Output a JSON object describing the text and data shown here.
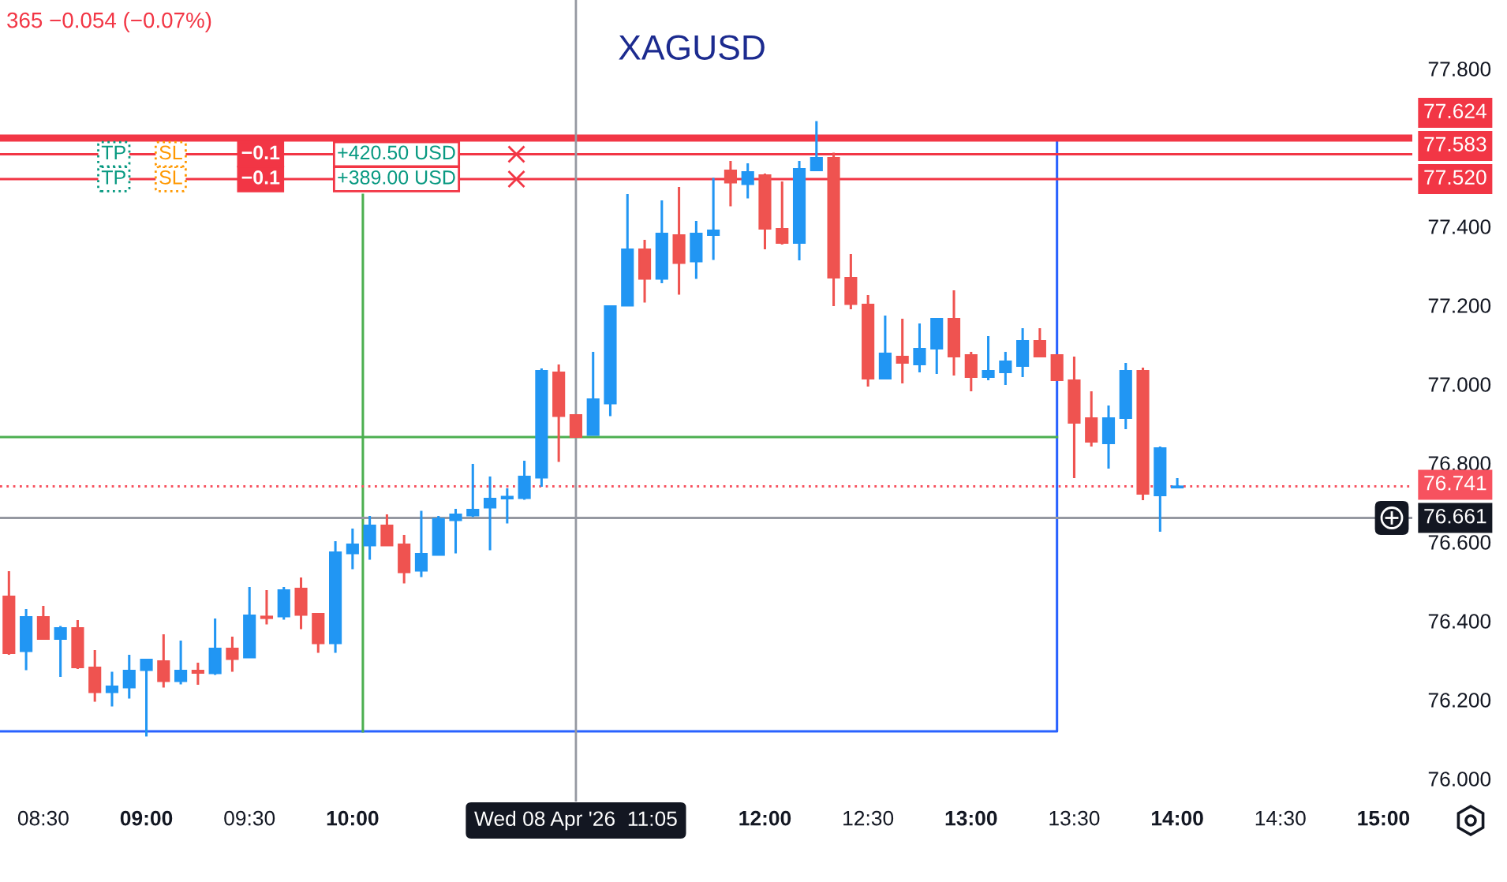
{
  "chart_data": {
    "type": "candlestick",
    "title": "XAGUSD",
    "x": [
      8.3333,
      8.4167,
      8.5,
      8.5833,
      8.6667,
      8.75,
      8.8333,
      8.9167,
      9,
      9.0833,
      9.1667,
      9.25,
      9.3333,
      9.4167,
      9.5,
      9.5833,
      9.6667,
      9.75,
      9.8333,
      9.9167,
      10,
      10.0833,
      10.1667,
      10.25,
      10.3333,
      10.4167,
      10.5,
      10.5833,
      10.6667,
      10.75,
      10.8333,
      10.9167,
      11,
      11.0833,
      11.1667,
      11.25,
      11.3333,
      11.4167,
      11.5,
      11.5833,
      11.6667,
      11.75,
      11.8333,
      11.9167,
      12,
      12.0833,
      12.1667,
      12.25,
      12.3333,
      12.4167,
      12.5,
      12.5833,
      12.6667,
      12.75,
      12.8333,
      12.9167,
      13,
      13.0833,
      13.1667,
      13.25,
      13.3333,
      13.4167,
      13.5,
      13.5833,
      13.6667,
      13.75,
      13.8333,
      13.9167,
      14
    ],
    "ohlc": [
      [
        76.462,
        76.526,
        76.314,
        76.318
      ],
      [
        76.323,
        76.43,
        76.275,
        76.41
      ],
      [
        76.41,
        76.438,
        76.352,
        76.354
      ],
      [
        76.354,
        76.387,
        76.258,
        76.382
      ],
      [
        76.382,
        76.402,
        76.278,
        76.282
      ],
      [
        76.282,
        76.326,
        76.195,
        76.219
      ],
      [
        76.219,
        76.271,
        76.183,
        76.234
      ],
      [
        76.231,
        76.314,
        76.203,
        76.274
      ],
      [
        76.275,
        76.302,
        76.107,
        76.302
      ],
      [
        76.298,
        76.366,
        76.231,
        76.247
      ],
      [
        76.247,
        76.35,
        76.239,
        76.274
      ],
      [
        76.274,
        76.294,
        76.238,
        76.268
      ],
      [
        76.267,
        76.406,
        76.263,
        76.33
      ],
      [
        76.33,
        76.36,
        76.271,
        76.303
      ],
      [
        76.307,
        76.486,
        76.307,
        76.414
      ],
      [
        76.411,
        76.478,
        76.391,
        76.407
      ],
      [
        76.411,
        76.486,
        76.403,
        76.478
      ],
      [
        76.482,
        76.51,
        76.379,
        76.415
      ],
      [
        76.418,
        76.418,
        76.319,
        76.343
      ],
      [
        76.343,
        76.602,
        76.319,
        76.574
      ],
      [
        76.571,
        76.634,
        76.531,
        76.594
      ],
      [
        76.591,
        76.666,
        76.555,
        76.642
      ],
      [
        76.642,
        76.67,
        76.591,
        76.591
      ],
      [
        76.594,
        76.618,
        76.495,
        76.523
      ],
      [
        76.527,
        76.679,
        76.511,
        76.57
      ],
      [
        76.567,
        76.666,
        76.567,
        76.659
      ],
      [
        76.655,
        76.684,
        76.571,
        76.67
      ],
      [
        76.667,
        76.798,
        76.663,
        76.682
      ],
      [
        76.687,
        76.766,
        76.579,
        76.71
      ],
      [
        76.71,
        76.736,
        76.647,
        76.715
      ],
      [
        76.711,
        76.806,
        76.707,
        76.766
      ],
      [
        76.763,
        77.04,
        76.74,
        77.034
      ],
      [
        77.03,
        77.05,
        76.803,
        76.919
      ],
      [
        76.922,
        76.922,
        76.866,
        76.866
      ],
      [
        76.871,
        77.082,
        76.871,
        76.962
      ],
      [
        76.951,
        77.2,
        76.919,
        77.198
      ],
      [
        77.199,
        77.482,
        77.199,
        77.342
      ],
      [
        77.342,
        77.366,
        77.207,
        77.267
      ],
      [
        77.267,
        77.466,
        77.256,
        77.382
      ],
      [
        77.378,
        77.5,
        77.227,
        77.307
      ],
      [
        77.311,
        77.414,
        77.267,
        77.382
      ],
      [
        77.378,
        77.523,
        77.315,
        77.39
      ],
      [
        77.542,
        77.566,
        77.451,
        77.511
      ],
      [
        77.507,
        77.56,
        77.471,
        77.538
      ],
      [
        77.53,
        77.534,
        77.342,
        77.394
      ],
      [
        77.394,
        77.514,
        77.354,
        77.358
      ],
      [
        77.358,
        77.566,
        77.314,
        77.546
      ],
      [
        77.542,
        77.667,
        77.542,
        77.574
      ],
      [
        77.574,
        77.587,
        77.198,
        77.27
      ],
      [
        77.27,
        77.33,
        77.19,
        77.203
      ],
      [
        77.202,
        77.226,
        76.994,
        77.014
      ],
      [
        77.014,
        77.174,
        77.014,
        77.078
      ],
      [
        77.07,
        77.166,
        77.002,
        77.054
      ],
      [
        77.05,
        77.154,
        77.03,
        77.09
      ],
      [
        77.09,
        77.166,
        77.026,
        77.166
      ],
      [
        77.166,
        77.238,
        77.022,
        77.07
      ],
      [
        77.074,
        77.082,
        76.982,
        77.018
      ],
      [
        77.018,
        77.122,
        77.01,
        77.034
      ],
      [
        77.03,
        77.082,
        76.998,
        77.058
      ],
      [
        77.046,
        77.142,
        77.018,
        77.11
      ],
      [
        77.11,
        77.142,
        77.07,
        77.07
      ],
      [
        77.074,
        77.074,
        77.01,
        77.01
      ],
      [
        77.01,
        77.07,
        76.762,
        76.902
      ],
      [
        76.914,
        76.982,
        76.842,
        76.854
      ],
      [
        76.85,
        76.946,
        76.786,
        76.914
      ],
      [
        76.914,
        77.054,
        76.886,
        77.034
      ],
      [
        77.034,
        77.042,
        76.706,
        76.722
      ],
      [
        76.718,
        76.842,
        76.626,
        76.838
      ],
      [
        76.738,
        76.762,
        76.738,
        76.741
      ]
    ],
    "colors": [
      "#ef5350",
      "#2196f3",
      "#ef5350",
      "#2196f3",
      "#ef5350",
      "#ef5350",
      "#2196f3",
      "#2196f3",
      "#2196f3",
      "#ef5350",
      "#2196f3",
      "#ef5350",
      "#2196f3",
      "#ef5350",
      "#2196f3",
      "#ef5350",
      "#2196f3",
      "#ef5350",
      "#ef5350",
      "#2196f3",
      "#2196f3",
      "#2196f3",
      "#ef5350",
      "#ef5350",
      "#2196f3",
      "#2196f3",
      "#2196f3",
      "#2196f3",
      "#2196f3",
      "#2196f3",
      "#2196f3",
      "#2196f3",
      "#ef5350",
      "#ef5350",
      "#2196f3",
      "#2196f3",
      "#2196f3",
      "#ef5350",
      "#2196f3",
      "#ef5350",
      "#2196f3",
      "#2196f3",
      "#ef5350",
      "#2196f3",
      "#ef5350",
      "#ef5350",
      "#2196f3",
      "#2196f3",
      "#ef5350",
      "#ef5350",
      "#ef5350",
      "#2196f3",
      "#ef5350",
      "#2196f3",
      "#2196f3",
      "#ef5350",
      "#ef5350",
      "#2196f3",
      "#2196f3",
      "#2196f3",
      "#ef5350",
      "#ef5350",
      "#ef5350",
      "#ef5350",
      "#2196f3",
      "#2196f3",
      "#ef5350",
      "#2196f3",
      "#2196f3"
    ],
    "series": [
      {
        "type": "line",
        "color": "#2962ff",
        "x": [
          8.29,
          13.4167,
          13.4167
        ],
        "values": [
          76.12,
          76.12,
          77.624
        ]
      },
      {
        "type": "line",
        "color": "#4caf50",
        "x": [
          10.05,
          10.05
        ],
        "values": [
          76.12,
          77.48
        ]
      },
      {
        "type": "line",
        "color": "#4caf50",
        "x": [
          8.29,
          13.4167
        ],
        "values": [
          76.866,
          76.866
        ]
      }
    ],
    "xlim": [
      8.29,
      15.14
    ],
    "ylim": [
      75.942,
      77.974
    ],
    "xticks": [
      {
        "value": 8.5,
        "label": "08:30"
      },
      {
        "value": 9,
        "label": "09:00"
      },
      {
        "value": 9.5,
        "label": "09:30"
      },
      {
        "value": 10,
        "label": "10:00"
      },
      {
        "value": 12,
        "label": "12:00"
      },
      {
        "value": 12.5,
        "label": "12:30"
      },
      {
        "value": 13,
        "label": "13:00"
      },
      {
        "value": 13.5,
        "label": "13:30"
      },
      {
        "value": 14,
        "label": "14:00"
      },
      {
        "value": 14.5,
        "label": "14:30"
      },
      {
        "value": 15,
        "label": "15:00"
      }
    ],
    "yticks": [
      {
        "value": 76,
        "label": "76.000"
      },
      {
        "value": 76.2,
        "label": "76.200"
      },
      {
        "value": 76.4,
        "label": "76.400"
      },
      {
        "value": 76.6,
        "label": "76.600"
      },
      {
        "value": 76.8,
        "label": "76.800"
      },
      {
        "value": 77,
        "label": "77.000"
      },
      {
        "value": 77.2,
        "label": "77.200"
      },
      {
        "value": 77.4,
        "label": "77.400"
      },
      {
        "value": 77.8,
        "label": "77.800"
      }
    ],
    "bands": [
      {
        "axis": "y",
        "from": 77.615,
        "to": 77.633,
        "label": "77.624",
        "color": "#f23645"
      }
    ],
    "ref_lines": [
      {
        "axis": "y",
        "value": 77.583,
        "label": "77.583",
        "color": "#f23645"
      },
      {
        "axis": "y",
        "value": 77.52,
        "label": "77.520",
        "color": "#f23645"
      },
      {
        "axis": "y",
        "value": 76.741,
        "label": "76.741",
        "color": "#f7525f",
        "line_style": "dotted"
      },
      {
        "axis": "y",
        "value": 76.661,
        "label": "76.661",
        "color": "#9598a1"
      },
      {
        "axis": "x",
        "value": 11.0833,
        "label": "Wed 08 Apr '26  11:05",
        "color": "#9598a1"
      }
    ],
    "annotations": [
      {
        "text": "TP",
        "x": 8.842,
        "y": 77.583
      },
      {
        "text": "SL",
        "x": 9.118,
        "y": 77.583
      },
      {
        "text": "−0.1",
        "x": 9.554,
        "y": 77.583
      },
      {
        "text": "+420.50 USD",
        "x": 10.213,
        "y": 77.583
      },
      {
        "text": "TP",
        "x": 8.842,
        "y": 77.52
      },
      {
        "text": "SL",
        "x": 9.118,
        "y": 77.52
      },
      {
        "text": "−0.1",
        "x": 9.554,
        "y": 77.52
      },
      {
        "text": "+389.00 USD",
        "x": 10.213,
        "y": 77.52
      },
      "365 −0.054 (−0.07%)"
    ]
  }
}
